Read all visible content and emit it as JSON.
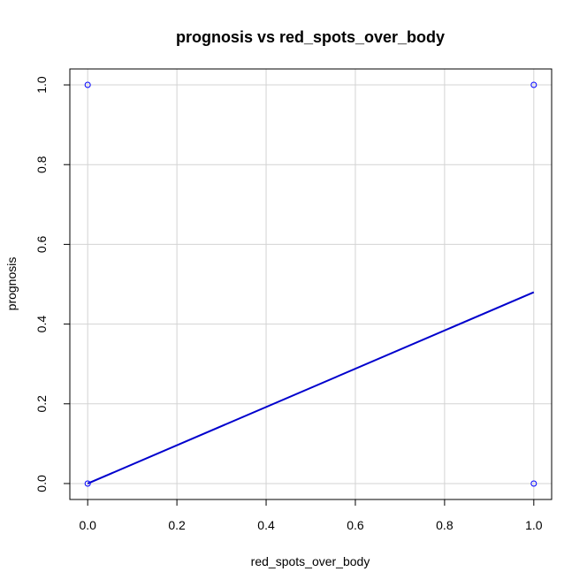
{
  "chart_data": {
    "type": "scatter",
    "title": "prognosis vs red_spots_over_body",
    "xlabel": "red_spots_over_body",
    "ylabel": "prognosis",
    "xlim": [
      -0.04,
      1.04
    ],
    "ylim": [
      -0.04,
      1.04
    ],
    "x_ticks": [
      0.0,
      0.2,
      0.4,
      0.6,
      0.8,
      1.0
    ],
    "x_tick_labels": [
      "0.0",
      "0.2",
      "0.4",
      "0.6",
      "0.8",
      "1.0"
    ],
    "y_ticks": [
      0.0,
      0.2,
      0.4,
      0.6,
      0.8,
      1.0
    ],
    "y_tick_labels": [
      "0.0",
      "0.2",
      "0.4",
      "0.6",
      "0.8",
      "1.0"
    ],
    "grid": true,
    "points": [
      {
        "x": 0,
        "y": 1
      },
      {
        "x": 1,
        "y": 1
      },
      {
        "x": 0,
        "y": 0
      },
      {
        "x": 1,
        "y": 0
      }
    ],
    "fit_line": {
      "x": [
        0,
        1
      ],
      "y": [
        0.0,
        0.48
      ]
    },
    "colors": {
      "points": "#0000ff",
      "line": "#0000cd",
      "grid": "#d3d3d3",
      "frame": "#000000"
    }
  }
}
